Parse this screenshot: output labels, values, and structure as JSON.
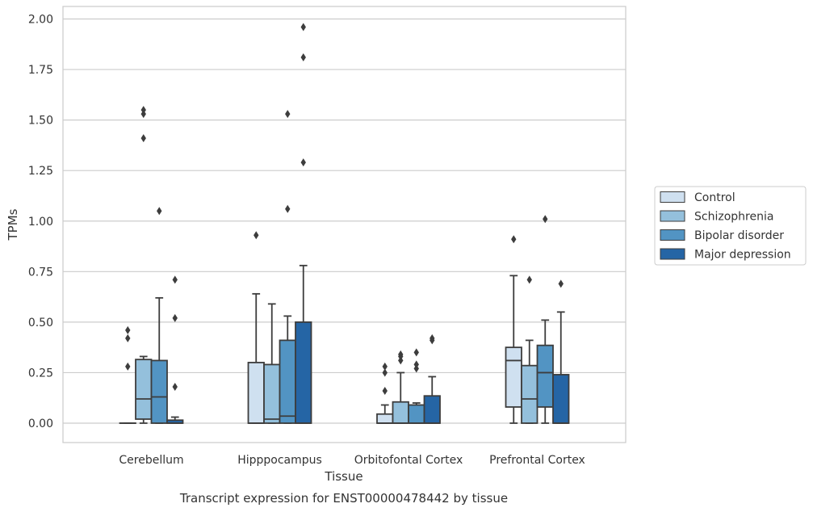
{
  "chart_data": {
    "type": "box",
    "caption": "Transcript expression for ENST00000478442 by tissue",
    "xlabel": "Tissue",
    "ylabel": "TPMs",
    "ylim": [
      -0.1,
      2.06
    ],
    "yticks": [
      "0.00",
      "0.25",
      "0.50",
      "0.75",
      "1.00",
      "1.25",
      "1.50",
      "1.75",
      "2.00"
    ],
    "grid": true,
    "legend_position": "right",
    "categories": [
      "Cerebellum",
      "Hipppocampus",
      "Orbitofontal Cortex",
      "Prefrontal Cortex"
    ],
    "series": [
      {
        "name": "Control",
        "color": "#cfe0f0",
        "boxes": [
          {
            "whisker_low": 0,
            "q1": 0,
            "median": 0,
            "q3": 0,
            "whisker_high": 0,
            "outliers": [
              0.28,
              0.42,
              0.46
            ]
          },
          {
            "whisker_low": 0,
            "q1": 0,
            "median": 0,
            "q3": 0.3,
            "whisker_high": 0.64,
            "outliers": [
              0.93
            ]
          },
          {
            "whisker_low": 0,
            "q1": 0,
            "median": 0,
            "q3": 0.045,
            "whisker_high": 0.09,
            "outliers": [
              0.16,
              0.25,
              0.28
            ]
          },
          {
            "whisker_low": 0,
            "q1": 0.08,
            "median": 0.31,
            "q3": 0.375,
            "whisker_high": 0.73,
            "outliers": [
              0.91
            ]
          }
        ]
      },
      {
        "name": "Schizophrenia",
        "color": "#94c0dc",
        "boxes": [
          {
            "whisker_low": 0,
            "q1": 0.02,
            "median": 0.12,
            "q3": 0.315,
            "whisker_high": 0.33,
            "outliers": [
              1.41,
              1.53,
              1.55
            ]
          },
          {
            "whisker_low": 0,
            "q1": 0,
            "median": 0.02,
            "q3": 0.29,
            "whisker_high": 0.59,
            "outliers": []
          },
          {
            "whisker_low": 0,
            "q1": 0,
            "median": 0,
            "q3": 0.105,
            "whisker_high": 0.25,
            "outliers": [
              0.31,
              0.33,
              0.34
            ]
          },
          {
            "whisker_low": 0,
            "q1": 0,
            "median": 0.12,
            "q3": 0.285,
            "whisker_high": 0.41,
            "outliers": [
              0.71
            ]
          }
        ]
      },
      {
        "name": "Bipolar disorder",
        "color": "#5294c3",
        "boxes": [
          {
            "whisker_low": 0,
            "q1": 0,
            "median": 0.13,
            "q3": 0.31,
            "whisker_high": 0.62,
            "outliers": [
              1.05
            ]
          },
          {
            "whisker_low": 0,
            "q1": 0,
            "median": 0.035,
            "q3": 0.41,
            "whisker_high": 0.53,
            "outliers": [
              1.06,
              1.53
            ]
          },
          {
            "whisker_low": 0,
            "q1": 0,
            "median": 0,
            "q3": 0.09,
            "whisker_high": 0.1,
            "outliers": [
              0.27,
              0.29,
              0.35
            ]
          },
          {
            "whisker_low": 0,
            "q1": 0.08,
            "median": 0.25,
            "q3": 0.385,
            "whisker_high": 0.51,
            "outliers": [
              1.01
            ]
          }
        ]
      },
      {
        "name": "Major depression",
        "color": "#2565a5",
        "boxes": [
          {
            "whisker_low": 0,
            "q1": 0,
            "median": 0,
            "q3": 0.015,
            "whisker_high": 0.03,
            "outliers": [
              0.18,
              0.52,
              0.71
            ]
          },
          {
            "whisker_low": 0,
            "q1": 0,
            "median": 0,
            "q3": 0.5,
            "whisker_high": 0.78,
            "outliers": [
              1.29,
              1.81,
              1.96
            ]
          },
          {
            "whisker_low": 0,
            "q1": 0,
            "median": 0,
            "q3": 0.135,
            "whisker_high": 0.23,
            "outliers": [
              0.41,
              0.42
            ]
          },
          {
            "whisker_low": 0,
            "q1": 0,
            "median": 0,
            "q3": 0.24,
            "whisker_high": 0.55,
            "outliers": [
              0.69
            ]
          }
        ]
      }
    ]
  }
}
